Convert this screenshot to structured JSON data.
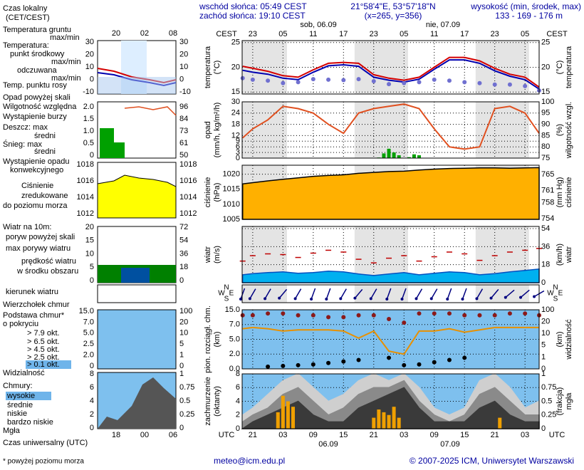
{
  "header": {
    "local_time": [
      "Czas lokalny",
      "(CET/CEST)"
    ],
    "sunrise": "wschód słońca: 05:49 CEST",
    "sunset": "zachód słońca: 19:10 CEST",
    "coords": "21°58'4\"E, 53°57'18\"N",
    "grid_point": "(x=265, y=356)",
    "elevation_title": "wysokość (min, środek, max)",
    "elevation": "133 - 169 - 176 m",
    "legend_top_hours": [
      "20",
      "02",
      "08"
    ],
    "legend_bottom_hours": [
      "18",
      "00",
      "06"
    ]
  },
  "legend": [
    {
      "text": "Temperatura gruntu",
      "color": "#c00000"
    },
    {
      "text": "max/min",
      "color": "#888888"
    },
    {
      "text": "Temperatura:",
      "color": "#000000"
    },
    {
      "text": "punkt środkowy",
      "color": "#c00000"
    },
    {
      "text": "max/min",
      "color": "#bbbbbb"
    },
    {
      "text": "odczuwana",
      "color": "#0000c0"
    },
    {
      "text": "max/min",
      "color": "#bbbbbb"
    },
    {
      "text": "Temp. punktu rosy",
      "color": "#5050c0"
    },
    {
      "text": "Opad powyżej skali",
      "color": "#c00000"
    },
    {
      "text": "Wilgotność względna",
      "color": "#c03000"
    },
    {
      "text": "Wystąpienie burzy",
      "color": "#000000"
    },
    {
      "text": "Deszcz: max",
      "color": "#008000"
    },
    {
      "text": "średni",
      "color": "#008000"
    },
    {
      "text": "Śnieg: max",
      "color": "#0000c0"
    },
    {
      "text": "średni",
      "color": "#0000c0"
    },
    {
      "text": "Wystąpienie opadu",
      "color": "#c00000"
    },
    {
      "text": "konwekcyjnego",
      "color": "#c00000"
    },
    {
      "text": "Ciśnienie",
      "color": "#000000"
    },
    {
      "text": "zredukowane",
      "color": "#000000"
    },
    {
      "text": "do poziomu morza",
      "color": "#000000"
    },
    {
      "text": "Wiatr na 10m:",
      "color": "#000000"
    },
    {
      "text": "poryw powyżej skali",
      "color": "#c00000"
    },
    {
      "text": "max porywy wiatru",
      "color": "#c00000"
    },
    {
      "text": "prędkość wiatru",
      "color": "#0000c0"
    },
    {
      "text": "w środku obszaru",
      "color": "#0000c0"
    },
    {
      "text": "kierunek wiatru",
      "color": "#000080"
    },
    {
      "text": "Wierzchołek chmur",
      "color": "#c00000"
    },
    {
      "text": "Podstawa chmur*",
      "color": "#000000"
    },
    {
      "text": "o pokryciu",
      "color": "#000000"
    },
    {
      "text": "> 7.9 okt.",
      "color": "#000000"
    },
    {
      "text": "> 6.5 okt.",
      "color": "#555555"
    },
    {
      "text": "> 4.5 okt.",
      "color": "#888888"
    },
    {
      "text": "> 2.5 okt.",
      "color": "#bbbbbb"
    },
    {
      "text": "> 0.1 okt.",
      "color": "#ffffff",
      "background": "#6fb4ea"
    },
    {
      "text": "Widzialność",
      "color": "#e08000"
    },
    {
      "text": "Chmury:",
      "color": "#000000"
    },
    {
      "text": "wysokie",
      "color": "#ffffff",
      "background": "#6fb4ea"
    },
    {
      "text": "średnie",
      "color": "#aaaaaa"
    },
    {
      "text": "niskie",
      "color": "#444444"
    },
    {
      "text": "bardzo niskie",
      "color": "#000000"
    },
    {
      "text": "Mgła",
      "color": "#e08000"
    },
    {
      "text": "Czas uniwersalny (UTC)",
      "color": "#000000"
    }
  ],
  "legend_ticks": [
    {
      "left": [
        "30",
        "20",
        "10",
        "0",
        "-10"
      ],
      "right": [
        "30",
        "20",
        "10",
        "0",
        "-10"
      ]
    },
    {
      "left": [
        "2.0",
        "1.5",
        "1.0",
        "0.5",
        "0"
      ],
      "right": [
        "96",
        "84",
        "73",
        "61",
        "50"
      ]
    },
    {
      "left": [
        "1018",
        "1016",
        "1014",
        "1012"
      ],
      "right": [
        "1018",
        "1016",
        "1014",
        "1012"
      ]
    },
    {
      "left": [
        "20",
        "15",
        "10",
        "5",
        "0"
      ],
      "right": [
        "72",
        "54",
        "36",
        "18",
        "0"
      ]
    },
    {
      "left": [
        "15.0",
        "7.0",
        "5.0",
        "2.5",
        "2.0",
        "0"
      ],
      "right": [
        "100",
        "20",
        "10",
        "5",
        "1",
        "0"
      ]
    },
    {
      "left": [
        "8",
        "6",
        "4",
        "2",
        "0"
      ],
      "right": [
        "1",
        "0.75",
        "0.5",
        "0.25",
        "0"
      ]
    }
  ],
  "time_axis": {
    "xlim": [
      -5.1,
      53.8
    ],
    "top_label": "CEST",
    "bottom_label": "UTC",
    "top_dates": [
      "sob, 06.09",
      "nie, 07.09"
    ],
    "bottom_dates": [
      "06.09",
      "07.09"
    ],
    "cest_ticks": [
      {
        "value": -3,
        "label": "23"
      },
      {
        "value": 3,
        "label": "05"
      },
      {
        "value": 9,
        "label": "11"
      },
      {
        "value": 15,
        "label": "17"
      },
      {
        "value": 21,
        "label": "23"
      },
      {
        "value": 27,
        "label": "05"
      },
      {
        "value": 33,
        "label": "11"
      },
      {
        "value": 39,
        "label": "17"
      },
      {
        "value": 45,
        "label": "23"
      },
      {
        "value": 51,
        "label": "05"
      }
    ],
    "utc_ticks": [
      {
        "value": -3,
        "label": "21"
      },
      {
        "value": 3,
        "label": "03"
      },
      {
        "value": 9,
        "label": "09"
      },
      {
        "value": 15,
        "label": "15"
      },
      {
        "value": 21,
        "label": "21"
      },
      {
        "value": 27,
        "label": "03"
      },
      {
        "value": 33,
        "label": "09"
      },
      {
        "value": 39,
        "label": "15"
      },
      {
        "value": 45,
        "label": "21"
      },
      {
        "value": 51,
        "label": "03"
      }
    ]
  },
  "chart_data": [
    {
      "type": "line",
      "ylabel": [
        "temperatura",
        "(°C)"
      ],
      "y2label": [
        "(°C)",
        "temperatura"
      ],
      "ylim": [
        14.6,
        25.4
      ],
      "yticks": [
        15,
        20,
        25
      ],
      "y2ticks": [
        15,
        20,
        25
      ],
      "grid": true,
      "x": [
        -5,
        -3,
        0,
        3,
        6,
        9,
        12,
        15,
        18,
        21,
        24,
        27,
        30,
        33,
        36,
        39,
        42,
        45,
        48,
        51,
        53.8
      ],
      "series": [
        {
          "name": "punkt środkowy",
          "style": "line",
          "color": "#d40000",
          "values": [
            20.2,
            19.8,
            19.2,
            18.3,
            18.0,
            19.5,
            20.8,
            21.0,
            20.8,
            18.5,
            17.8,
            17.4,
            18.0,
            20.0,
            22.0,
            22.0,
            21.3,
            19.8,
            18.6,
            18.0,
            16.0
          ]
        },
        {
          "name": "odczuwana",
          "style": "line",
          "color": "#0000b0",
          "values": [
            19.4,
            19.0,
            18.6,
            17.8,
            17.5,
            19.0,
            20.3,
            20.5,
            20.2,
            18.0,
            17.4,
            17.0,
            17.6,
            19.6,
            21.5,
            21.5,
            20.8,
            19.3,
            18.2,
            17.5,
            15.6
          ]
        },
        {
          "name": "Temp. punktu rosy",
          "style": "dots",
          "color": "#7070d0",
          "values": [
            17.8,
            17.5,
            17.3,
            16.8,
            17.0,
            17.6,
            17.5,
            17.4,
            17.6,
            17.2,
            16.6,
            16.8,
            17.0,
            17.5,
            17.3,
            17.0,
            16.8,
            16.5,
            16.5,
            16.2,
            15.3
          ]
        }
      ]
    },
    {
      "type": "line",
      "ylabel": [
        "opad",
        "(mm/h, kg/m²/h)"
      ],
      "y2label": [
        "(%)",
        "wilgotność wzgl."
      ],
      "ylim": [
        0,
        30
      ],
      "yticks": [
        0,
        3,
        6,
        9,
        12,
        18,
        24,
        30
      ],
      "y2lim": [
        75,
        100
      ],
      "y2ticks": [
        75,
        80,
        85,
        90,
        95,
        100
      ],
      "grid": true,
      "x": [
        -5,
        -3,
        0,
        3,
        6,
        9,
        12,
        15,
        18,
        21,
        24,
        27,
        30,
        33,
        36,
        39,
        42,
        45,
        48,
        51,
        53.8
      ],
      "series": [
        {
          "name": "Wilgotność względna",
          "style": "line",
          "axis": "y2",
          "color": "#e05020",
          "values": [
            84,
            88,
            92,
            98,
            97,
            95,
            90,
            86,
            95,
            97,
            98,
            99,
            97,
            88,
            80,
            79,
            80,
            97,
            98,
            95,
            86
          ]
        },
        {
          "name": "Deszcz",
          "style": "bars",
          "color": "#00a000",
          "x": [
            22,
            23,
            24,
            25,
            26,
            28,
            29,
            30
          ],
          "values": [
            0.3,
            2.5,
            5,
            3,
            1.5,
            0.5,
            2,
            1.5
          ]
        }
      ]
    },
    {
      "type": "area",
      "ylabel": [
        "ciśnienie",
        "(hPa)"
      ],
      "y2label": [
        "(mm Hg)",
        "ciśnienie"
      ],
      "ylim": [
        1005,
        1023
      ],
      "yticks": [
        1005,
        1010,
        1015,
        1020
      ],
      "y2lim": [
        753.8,
        767.3
      ],
      "y2ticks": [
        754,
        758,
        761,
        765
      ],
      "grid": true,
      "x": [
        -5,
        -3,
        0,
        3,
        6,
        9,
        12,
        15,
        18,
        21,
        24,
        27,
        30,
        33,
        36,
        39,
        42,
        45,
        48,
        51,
        53.8
      ],
      "series": [
        {
          "name": "Ciśnienie",
          "style": "area",
          "color": "#000000",
          "fill": "#ffb000",
          "values": [
            1016.8,
            1017.2,
            1017.8,
            1018.3,
            1018.8,
            1019.3,
            1019.6,
            1019.8,
            1020.3,
            1020.6,
            1020.9,
            1021.0,
            1021.4,
            1021.7,
            1021.9,
            1022.0,
            1022.1,
            1022.1,
            1022.0,
            1022.1,
            1022.2
          ]
        }
      ]
    },
    {
      "type": "area",
      "ylabel": [
        "wiatr",
        "(m/s)"
      ],
      "y2label": [
        "(km/h)",
        "wiatr"
      ],
      "ylim": [
        0,
        15.6
      ],
      "yticks": [
        0,
        5,
        10,
        15
      ],
      "y2lim": [
        0,
        56.2
      ],
      "y2ticks": [
        0,
        18,
        36,
        54
      ],
      "grid": true,
      "hide_left_ticks": true,
      "x": [
        -5,
        -3,
        0,
        3,
        6,
        9,
        12,
        15,
        18,
        21,
        24,
        27,
        30,
        33,
        36,
        39,
        42,
        45,
        48,
        51,
        53.8
      ],
      "series": [
        {
          "name": "prędkość wiatru",
          "style": "area",
          "color": "#0050c0",
          "fill": "#00b0f0",
          "values": [
            2.2,
            2.5,
            2.8,
            3.0,
            2.6,
            2.8,
            3.2,
            3.0,
            2.4,
            2.0,
            2.4,
            2.8,
            2.2,
            2.6,
            3.0,
            2.8,
            2.2,
            2.5,
            3.0,
            3.4,
            3.8
          ]
        },
        {
          "name": "max porywy wiatru",
          "style": "dashes",
          "color": "#c00000",
          "values": [
            6.0,
            7.5,
            8.0,
            7.8,
            7.0,
            8.2,
            9.0,
            8.5,
            6.5,
            5.5,
            6.8,
            7.5,
            6.0,
            7.2,
            8.5,
            8.0,
            6.2,
            7.5,
            8.5,
            9.0,
            9.5
          ]
        }
      ]
    },
    {
      "type": "arrows",
      "compass": [
        "N",
        "W",
        "E",
        "S"
      ],
      "x": [
        -5,
        -3,
        0,
        3,
        6,
        9,
        12,
        15,
        18,
        21,
        24,
        27,
        30,
        33,
        36,
        39,
        42,
        45,
        48,
        51,
        53.8
      ],
      "series": [
        {
          "name": "kierunek wiatru",
          "style": "arrows",
          "color": "#000080",
          "values": [
            20,
            30,
            30,
            40,
            30,
            20,
            20,
            30,
            40,
            30,
            20,
            20,
            30,
            30,
            20,
            20,
            30,
            40,
            50,
            50,
            60
          ]
        }
      ]
    },
    {
      "type": "scatter",
      "ylabel": [
        "pion. rozciągł. chm.",
        "(km)"
      ],
      "y2label": [
        "(km)",
        "widzialność"
      ],
      "yscale": "piecewise",
      "ylim": [
        0,
        15
      ],
      "yticks": [
        {
          "value": 0,
          "label": "0.0"
        },
        {
          "value": 2,
          "label": "2.0"
        },
        {
          "value": 5,
          "label": "5.0"
        },
        {
          "value": 7,
          "label": "7.0"
        },
        {
          "value": 15,
          "label": "15.0"
        }
      ],
      "y2lim": [
        0,
        100
      ],
      "y2ticks": [
        0,
        1,
        5,
        10,
        20,
        100
      ],
      "grid": true,
      "background": "#7ec0ee",
      "x": [
        -5,
        -3,
        0,
        3,
        6,
        9,
        12,
        15,
        18,
        21,
        24,
        27,
        30,
        33,
        36,
        39,
        42,
        45,
        48,
        51,
        53.8
      ],
      "series": [
        {
          "name": "Wierzchołek chmur",
          "style": "dots",
          "color": "#8b1a1a",
          "values": [
            12,
            12,
            13,
            13,
            12,
            12,
            11,
            11,
            12,
            12,
            10,
            8,
            13,
            13,
            13,
            12,
            12,
            12,
            13,
            13,
            12
          ]
        },
        {
          "name": "> 7.9 okt.",
          "style": "dots",
          "color": "#000000",
          "values": [
            null,
            null,
            0.3,
            0.4,
            0.5,
            0.6,
            0.8,
            1.0,
            1.2,
            null,
            1.5,
            0.5,
            0.6,
            0.9,
            1.2,
            1.5,
            null,
            null,
            null,
            null,
            null
          ]
        },
        {
          "name": "Widzialność",
          "style": "line",
          "axis": "y2",
          "color": "#e89000",
          "values": [
            14,
            15,
            14,
            12,
            13,
            13,
            13,
            12,
            8,
            12,
            3,
            2,
            12,
            12,
            14,
            11,
            13,
            15,
            15,
            15,
            15
          ]
        }
      ]
    },
    {
      "type": "area",
      "ylabel": [
        "zachmurzenie",
        "(oktanty)"
      ],
      "y2label": [
        "(frakcja)",
        "mgła"
      ],
      "ylim": [
        0,
        8
      ],
      "yticks": [
        0,
        2,
        4,
        6,
        8
      ],
      "y2lim": [
        0,
        1
      ],
      "y2ticks": [
        0,
        0.25,
        0.5,
        0.75,
        1
      ],
      "grid": true,
      "background": "#7ec0ee",
      "x": [
        -5,
        -3,
        0,
        3,
        6,
        9,
        12,
        15,
        18,
        21,
        24,
        27,
        30,
        33,
        36,
        39,
        42,
        45,
        48,
        51,
        53.8
      ],
      "series": [
        {
          "name": "wysokie",
          "style": "area",
          "color": "#cfcfcf",
          "fill": "#cfcfcf",
          "values": [
            2,
            3,
            5,
            7,
            8,
            6,
            4,
            5,
            7,
            8,
            7,
            8,
            6,
            3,
            2,
            3,
            7,
            8,
            6,
            3,
            4
          ]
        },
        {
          "name": "średnie",
          "style": "area",
          "color": "#8a8a8a",
          "fill": "#8a8a8a",
          "values": [
            1,
            2,
            3,
            5,
            6,
            4,
            2,
            3,
            5,
            6,
            6,
            7,
            4,
            2,
            1,
            2,
            5,
            6,
            4,
            2,
            2
          ]
        },
        {
          "name": "niskie",
          "style": "area",
          "color": "#3a3a3a",
          "fill": "#3a3a3a",
          "values": [
            0,
            1,
            2,
            3,
            4,
            2,
            1,
            1,
            3,
            4,
            5,
            6,
            3,
            1,
            1,
            1,
            3,
            4,
            2,
            1,
            1
          ]
        },
        {
          "name": "Mgła",
          "style": "bars",
          "axis": "y2",
          "color": "#f0a000",
          "x": [
            2,
            3,
            4,
            5,
            21,
            22,
            23,
            24,
            25,
            26,
            46
          ],
          "values": [
            0.3,
            0.6,
            0.5,
            0.4,
            0.2,
            0.35,
            0.3,
            0.25,
            0.4,
            0.2,
            0.2
          ]
        }
      ]
    }
  ],
  "footer": {
    "note": "* powyżej poziomu morza",
    "email": "meteo@icm.edu.pl",
    "copyright": "© 2007-2025 ICM, Uniwersytet Warszawski"
  }
}
